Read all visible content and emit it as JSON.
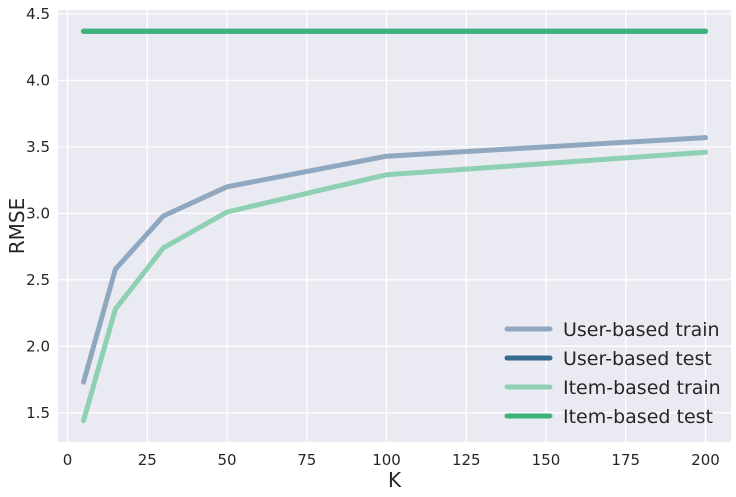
{
  "chart_data": {
    "type": "line",
    "xlabel": "K",
    "ylabel": "RMSE",
    "xlim": [
      -3,
      208
    ],
    "ylim": [
      1.28,
      4.53
    ],
    "xticks": [
      0,
      25,
      50,
      75,
      100,
      125,
      150,
      175,
      200
    ],
    "yticks": [
      1.5,
      2.0,
      2.5,
      3.0,
      3.5,
      4.0,
      4.5
    ],
    "xtick_labels": [
      "0",
      "25",
      "50",
      "75",
      "100",
      "125",
      "150",
      "175",
      "200"
    ],
    "ytick_labels": [
      "1.5",
      "2.0",
      "2.5",
      "3.0",
      "3.5",
      "4.0",
      "4.5"
    ],
    "x": [
      5,
      15,
      30,
      50,
      100,
      200
    ],
    "grid": true,
    "legend_position": "lower-right",
    "series": [
      {
        "name": "User-based train",
        "values": [
          1.73,
          2.58,
          2.98,
          3.2,
          3.43,
          3.57
        ],
        "color": "#8FA8C0",
        "width": 5
      },
      {
        "name": "User-based test",
        "values": [
          4.37,
          4.37,
          4.37,
          4.37,
          4.37,
          4.37
        ],
        "color": "#346B8F",
        "width": 5
      },
      {
        "name": "Item-based train",
        "values": [
          1.44,
          2.28,
          2.74,
          3.01,
          3.29,
          3.46
        ],
        "color": "#8ED1B2",
        "width": 5
      },
      {
        "name": "Item-based test",
        "values": [
          4.37,
          4.37,
          4.37,
          4.37,
          4.37,
          4.37
        ],
        "color": "#3CB37A",
        "width": 5
      }
    ]
  },
  "style": {
    "background": "#ffffff",
    "plot_background": "#EAEAF2",
    "grid_color": "#ffffff",
    "text_color": "#262626"
  }
}
